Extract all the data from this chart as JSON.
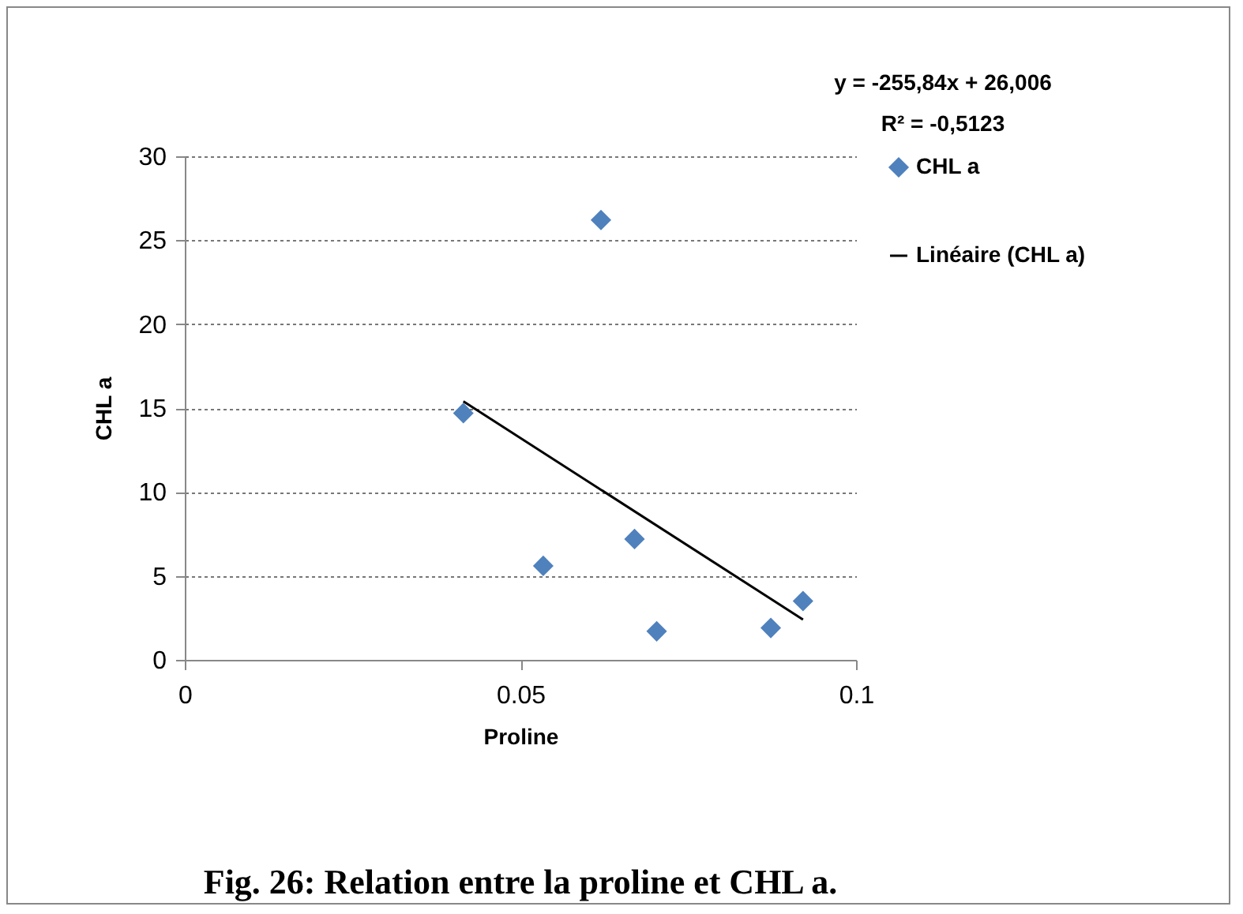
{
  "chart_data": {
    "type": "scatter",
    "title": "Fig. 26: Relation entre la proline et CHL a.",
    "xlabel": "Proline",
    "ylabel": "CHL a",
    "annotations": [
      "y = -255,84x + 26,006",
      "R² = -0,5123"
    ],
    "series": [
      {
        "name": "CHL a",
        "color": "#4f81bd",
        "marker": "diamond",
        "x": [
          0.0415,
          0.062,
          0.0534,
          0.067,
          0.0703,
          0.0873,
          0.0921
        ],
        "values": [
          14.7,
          26.2,
          5.6,
          7.2,
          1.7,
          1.9,
          3.5
        ]
      },
      {
        "name": "Linéaire (CHL a)",
        "type": "line",
        "color": "#000000",
        "marker": "none",
        "line_style": "solid",
        "x": [
          0.0415,
          0.0921
        ],
        "values": [
          15.4,
          2.4
        ]
      }
    ],
    "xlim": [
      0,
      0.1
    ],
    "xticks": [
      0,
      0.05,
      0.1
    ],
    "ylim": [
      0,
      30
    ],
    "yticks": [
      0,
      5,
      10,
      15,
      20,
      25,
      30
    ],
    "grid": "y",
    "legend": "right"
  }
}
